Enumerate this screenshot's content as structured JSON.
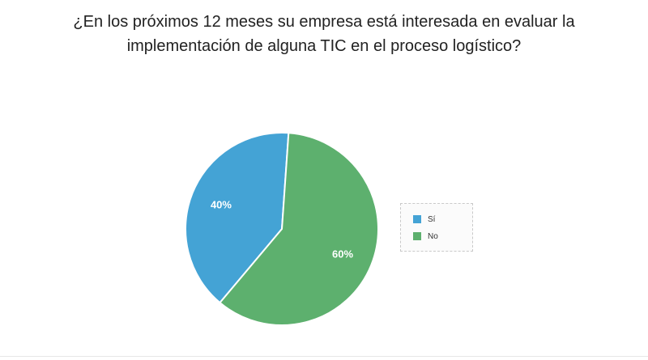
{
  "title_lines": [
    "¿En los próximos 12 meses su empresa está interesada en evaluar la",
    "implementación de alguna TIC en el proceso logístico?"
  ],
  "chart_data": {
    "type": "pie",
    "title": "¿En los próximos 12 meses su empresa está interesada en evaluar la implementación de alguna TIC en el proceso logístico?",
    "slices": [
      {
        "label": "Sí",
        "value": 40,
        "display": "40%",
        "color": "#44a3d5"
      },
      {
        "label": "No",
        "value": 60,
        "display": "60%",
        "color": "#5db06e"
      }
    ],
    "legend_placement": "right"
  }
}
